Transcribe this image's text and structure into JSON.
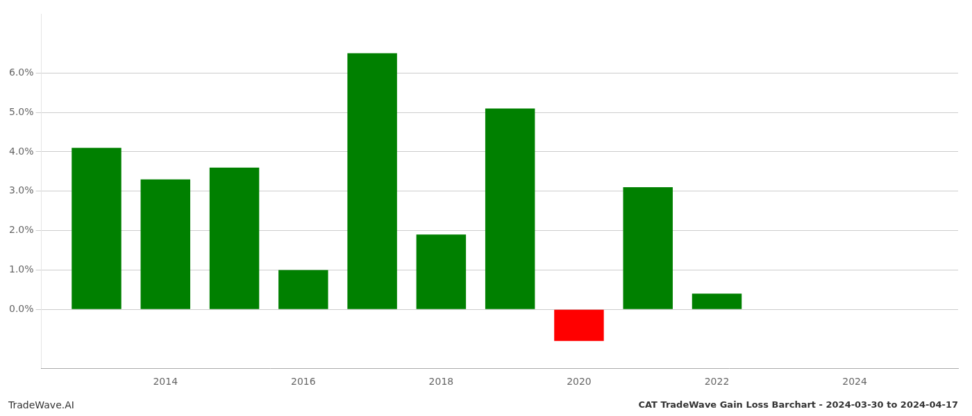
{
  "chart_data": {
    "type": "bar",
    "title": "CAT TradeWave Gain Loss Barchart - 2024-03-30 to 2024-04-17",
    "annotations": [
      "TradeWave.AI"
    ],
    "x": [
      2013,
      2014,
      2015,
      2016,
      2017,
      2018,
      2019,
      2020,
      2021,
      2022,
      2023
    ],
    "values": [
      0.041,
      0.033,
      0.036,
      0.01,
      0.065,
      0.019,
      0.051,
      -0.008,
      0.031,
      0.004,
      0.0
    ],
    "colors": [
      "#008000",
      "#008000",
      "#008000",
      "#008000",
      "#008000",
      "#008000",
      "#008000",
      "#ff0000",
      "#008000",
      "#008000",
      "#008000"
    ],
    "xlim": [
      2012.2,
      2025.5
    ],
    "xticks": [
      2014,
      2016,
      2018,
      2020,
      2022,
      2024
    ],
    "ylim": [
      -0.015,
      0.075
    ],
    "yticks": [
      {
        "value": 0.0,
        "label": "0.0%"
      },
      {
        "value": 0.01,
        "label": "1.0%"
      },
      {
        "value": 0.02,
        "label": "2.0%"
      },
      {
        "value": 0.03,
        "label": "3.0%"
      },
      {
        "value": 0.04,
        "label": "4.0%"
      },
      {
        "value": 0.05,
        "label": "5.0%"
      },
      {
        "value": 0.06,
        "label": "6.0%"
      }
    ],
    "grid": true
  }
}
